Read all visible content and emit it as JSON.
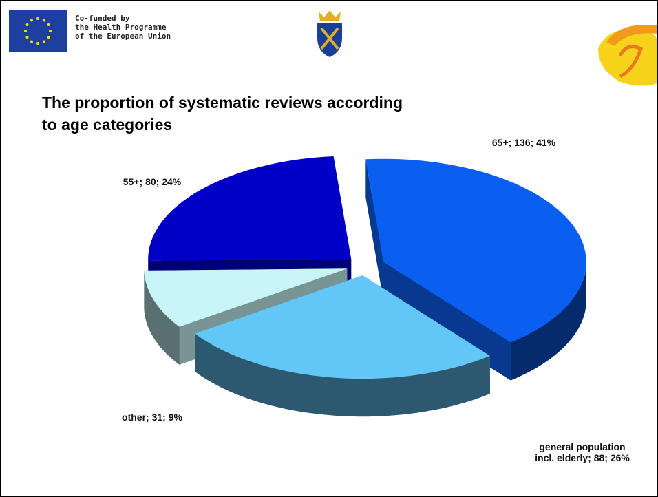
{
  "header": {
    "funding_lines": [
      "Co-funded by",
      "the Health Programme",
      "of the European Union"
    ]
  },
  "chart_data": {
    "type": "pie",
    "title": "The proportion of systematic reviews according to age categories",
    "categories": [
      "65+",
      "general population incl. elderly",
      "other",
      "55+"
    ],
    "values": [
      136,
      88,
      31,
      80
    ],
    "value_labels": [
      "65+; 136; 41%",
      "general population incl. elderly; 88; 26%",
      "other; 31; 9%",
      "55+; 80; 24%"
    ],
    "colors": [
      "#0b5ff0",
      "#62c6f6",
      "#c8f6f8",
      "#0000c6"
    ]
  }
}
